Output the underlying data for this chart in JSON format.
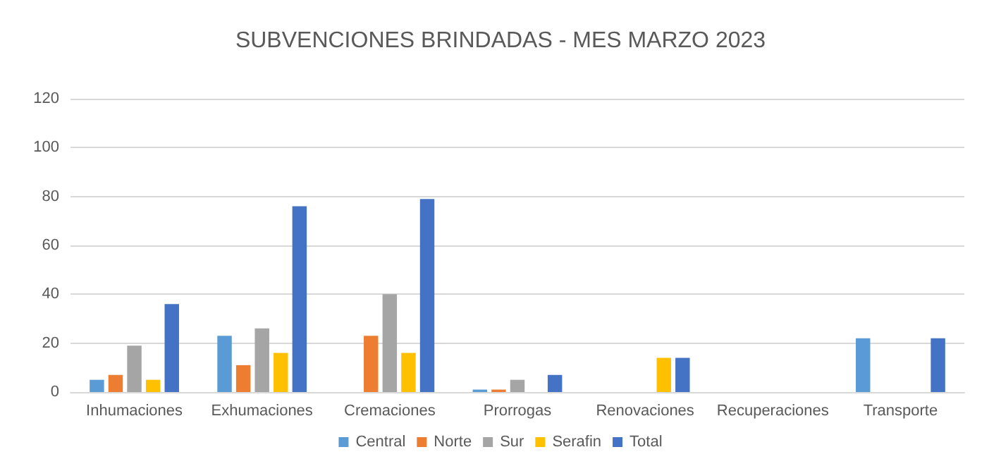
{
  "chart_data": {
    "type": "bar",
    "title": "SUBVENCIONES BRINDADAS - MES MARZO 2023",
    "categories": [
      "Inhumaciones",
      "Exhumaciones",
      "Cremaciones",
      "Prorrogas",
      "Renovaciones",
      "Recuperaciones",
      "Transporte"
    ],
    "series": [
      {
        "name": "Central",
        "color": "#5b9bd5",
        "values": [
          5,
          23,
          0,
          1,
          0,
          0,
          22
        ]
      },
      {
        "name": "Norte",
        "color": "#ed7d31",
        "values": [
          7,
          11,
          23,
          1,
          0,
          0,
          0
        ]
      },
      {
        "name": "Sur",
        "color": "#a5a5a5",
        "values": [
          19,
          26,
          40,
          5,
          0,
          0,
          0
        ]
      },
      {
        "name": "Serafin",
        "color": "#ffc000",
        "values": [
          5,
          16,
          16,
          0,
          14,
          0,
          0
        ]
      },
      {
        "name": "Total",
        "color": "#4472c4",
        "values": [
          36,
          76,
          79,
          7,
          14,
          0,
          22
        ]
      }
    ],
    "ylim": [
      0,
      120
    ],
    "yticks": [
      0,
      20,
      40,
      60,
      80,
      100,
      120
    ],
    "grid": "y",
    "legend": "bottom"
  }
}
